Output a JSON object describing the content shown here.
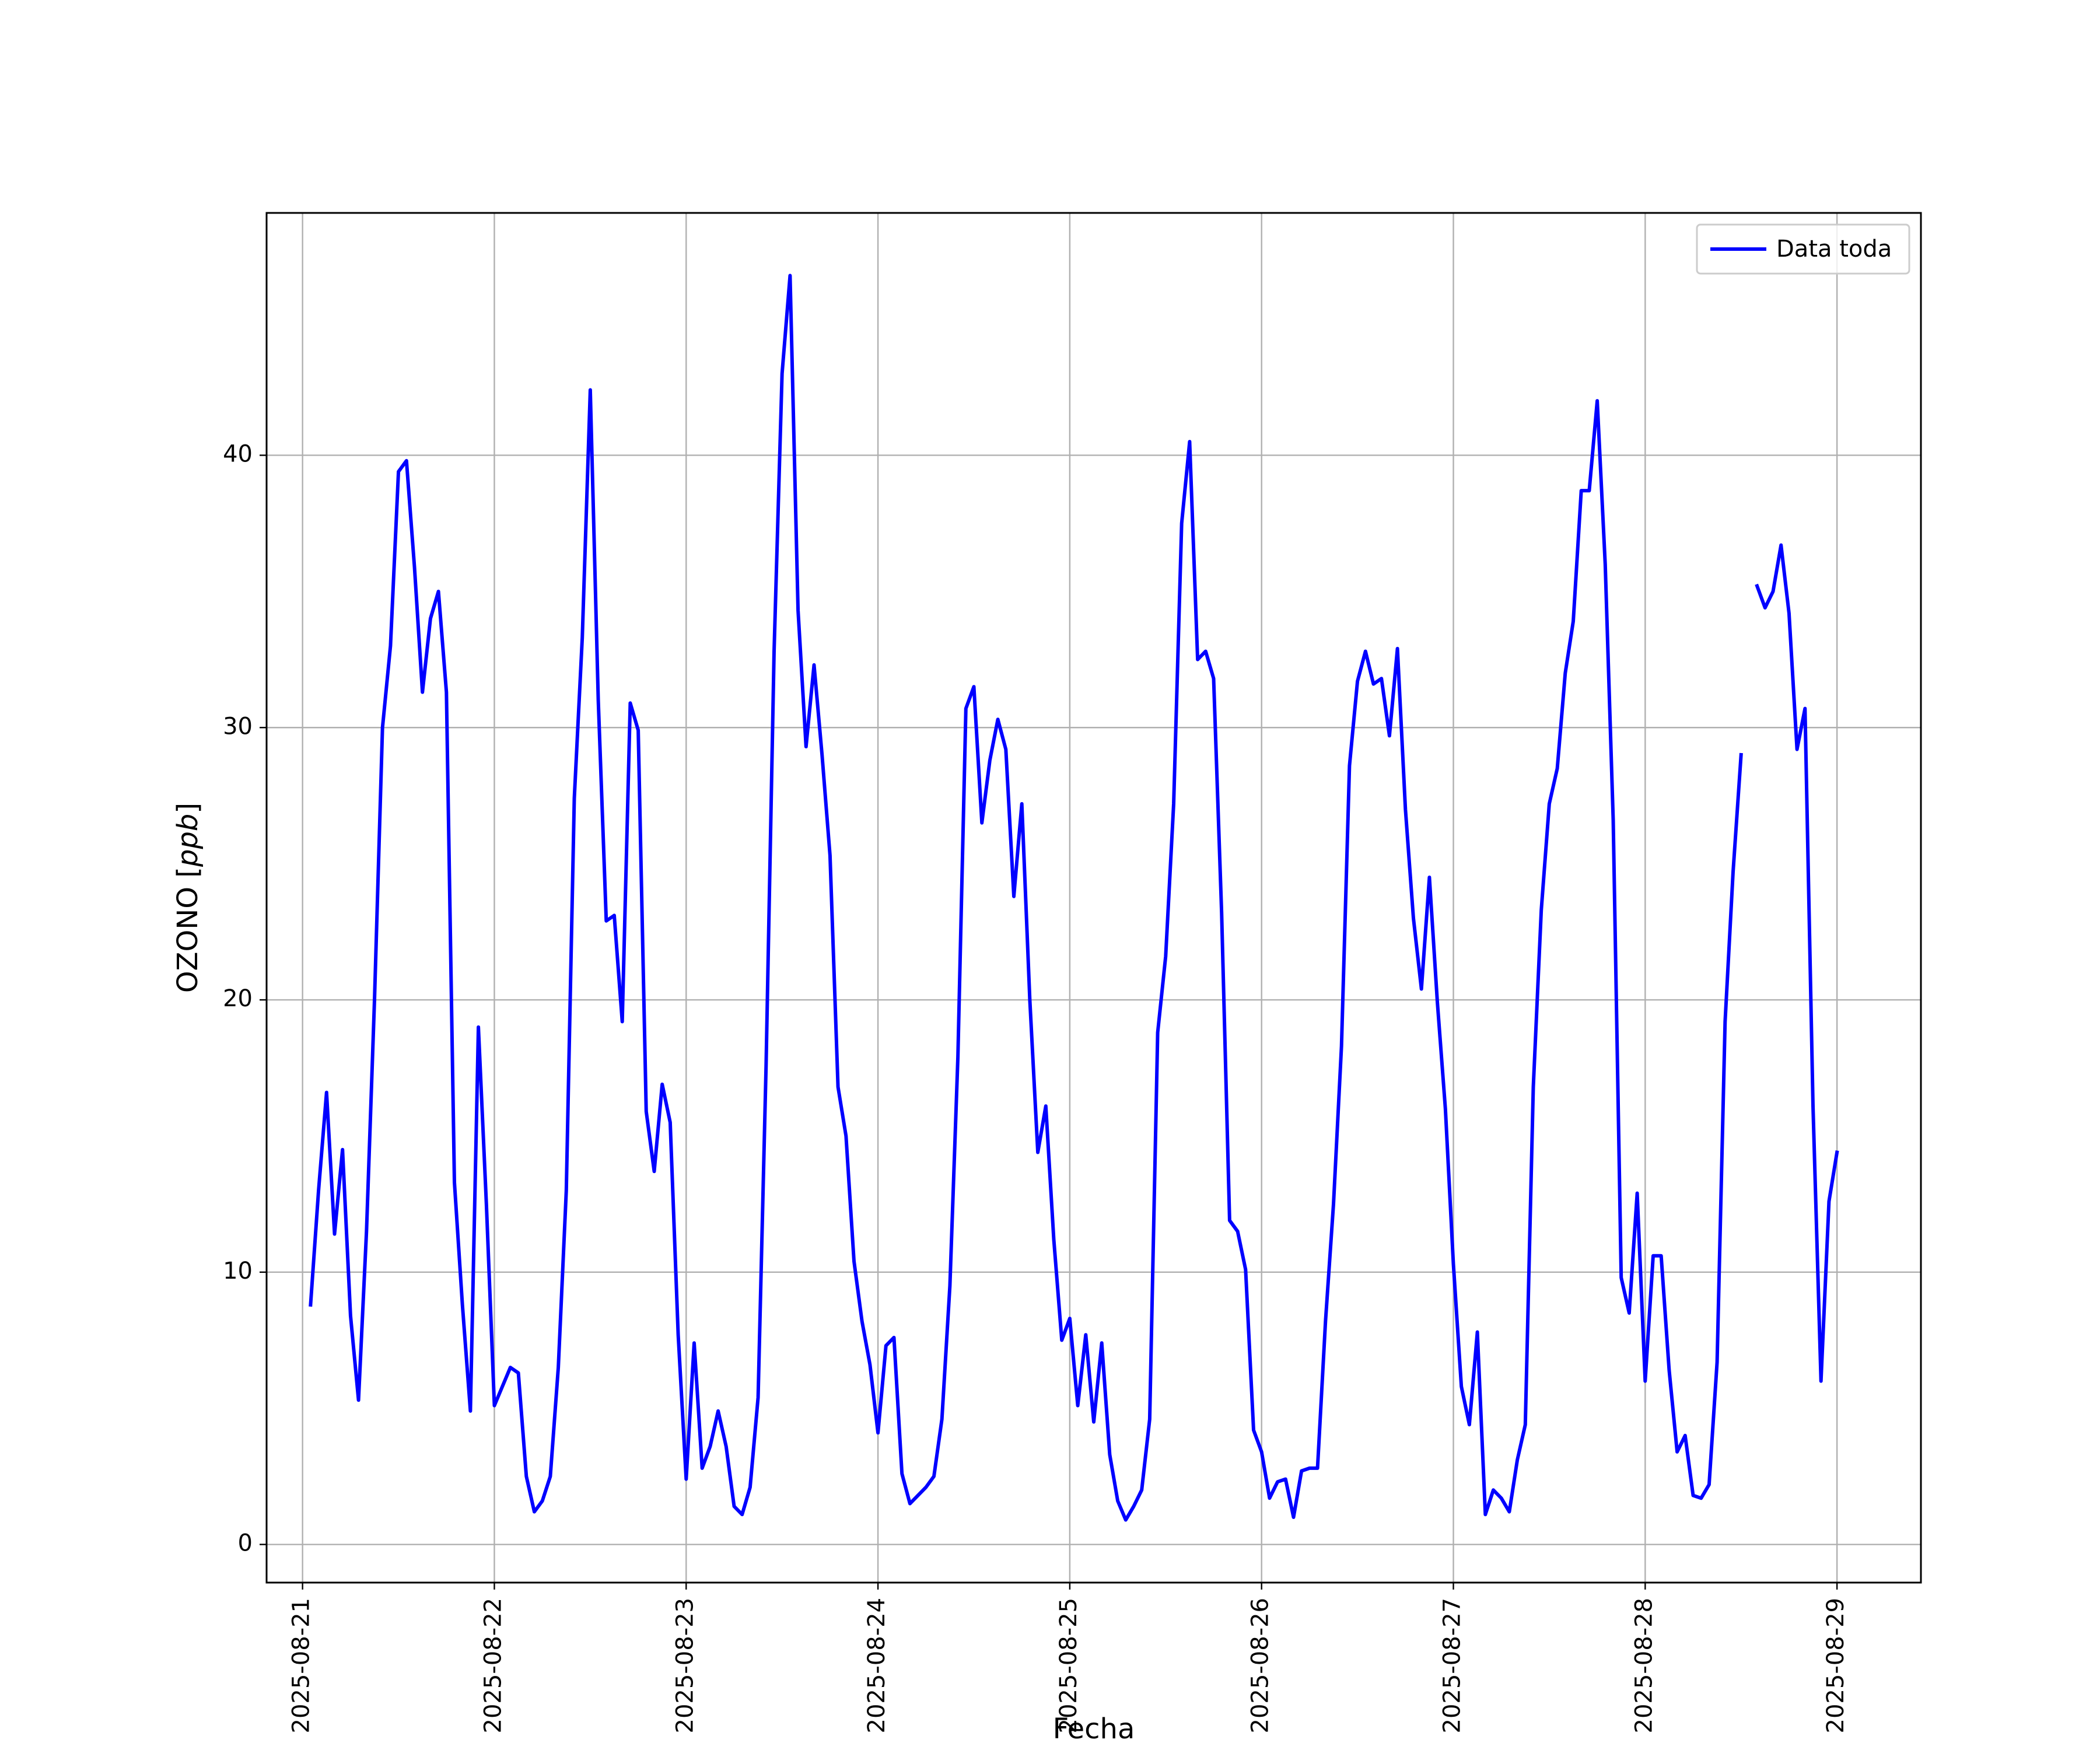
{
  "chart_data": {
    "type": "line",
    "xlabel": "Fecha",
    "ylabel": "OZONO [ppb]",
    "ylabel_main": "OZONO [",
    "ylabel_unit": "ppb",
    "ylabel_close": "]",
    "x_ticks": [
      "2025-08-21",
      "2025-08-22",
      "2025-08-23",
      "2025-08-24",
      "2025-08-25",
      "2025-08-26",
      "2025-08-27",
      "2025-08-28",
      "2025-08-29"
    ],
    "y_ticks": [
      0,
      10,
      20,
      30,
      40
    ],
    "xlim": [
      "2025-08-20T19:30",
      "2025-08-29T10:30"
    ],
    "ylim": [
      -1.4,
      48.9
    ],
    "grid": true,
    "legend_position": "top-right",
    "colors": {
      "series": "#0000ff",
      "grid": "#b0b0b0",
      "axes": "#000000",
      "legend_border": "#cccccc"
    },
    "series": [
      {
        "name": "Data toda",
        "data": [
          {
            "x": "2025-08-21 01:00",
            "y": 8.8
          },
          {
            "x": "2025-08-21 02:00",
            "y": 13.0
          },
          {
            "x": "2025-08-21 03:00",
            "y": 16.6
          },
          {
            "x": "2025-08-21 04:00",
            "y": 11.4
          },
          {
            "x": "2025-08-21 05:00",
            "y": 14.5
          },
          {
            "x": "2025-08-21 06:00",
            "y": 8.4
          },
          {
            "x": "2025-08-21 07:00",
            "y": 5.3
          },
          {
            "x": "2025-08-21 08:00",
            "y": 11.5
          },
          {
            "x": "2025-08-21 09:00",
            "y": 20.0
          },
          {
            "x": "2025-08-21 10:00",
            "y": 30.0
          },
          {
            "x": "2025-08-21 11:00",
            "y": 33.0
          },
          {
            "x": "2025-08-21 12:00",
            "y": 39.4
          },
          {
            "x": "2025-08-21 13:00",
            "y": 39.8
          },
          {
            "x": "2025-08-21 14:00",
            "y": 35.9
          },
          {
            "x": "2025-08-21 15:00",
            "y": 31.3
          },
          {
            "x": "2025-08-21 16:00",
            "y": 34.0
          },
          {
            "x": "2025-08-21 17:00",
            "y": 35.0
          },
          {
            "x": "2025-08-21 18:00",
            "y": 31.3
          },
          {
            "x": "2025-08-21 19:00",
            "y": 13.3
          },
          {
            "x": "2025-08-21 20:00",
            "y": 8.8
          },
          {
            "x": "2025-08-21 21:00",
            "y": 4.9
          },
          {
            "x": "2025-08-21 22:00",
            "y": 19.0
          },
          {
            "x": "2025-08-21 23:00",
            "y": 12.5
          },
          {
            "x": "2025-08-22 00:00",
            "y": 5.1
          },
          {
            "x": "2025-08-22 01:00",
            "y": 5.8
          },
          {
            "x": "2025-08-22 02:00",
            "y": 6.5
          },
          {
            "x": "2025-08-22 03:00",
            "y": 6.3
          },
          {
            "x": "2025-08-22 04:00",
            "y": 2.5
          },
          {
            "x": "2025-08-22 05:00",
            "y": 1.2
          },
          {
            "x": "2025-08-22 06:00",
            "y": 1.6
          },
          {
            "x": "2025-08-22 07:00",
            "y": 2.5
          },
          {
            "x": "2025-08-22 08:00",
            "y": 6.5
          },
          {
            "x": "2025-08-22 09:00",
            "y": 13.0
          },
          {
            "x": "2025-08-22 10:00",
            "y": 27.4
          },
          {
            "x": "2025-08-22 11:00",
            "y": 33.3
          },
          {
            "x": "2025-08-22 12:00",
            "y": 42.4
          },
          {
            "x": "2025-08-22 13:00",
            "y": 31.0
          },
          {
            "x": "2025-08-22 14:00",
            "y": 22.9
          },
          {
            "x": "2025-08-22 15:00",
            "y": 23.1
          },
          {
            "x": "2025-08-22 16:00",
            "y": 19.2
          },
          {
            "x": "2025-08-22 17:00",
            "y": 30.9
          },
          {
            "x": "2025-08-22 18:00",
            "y": 29.9
          },
          {
            "x": "2025-08-22 19:00",
            "y": 15.9
          },
          {
            "x": "2025-08-22 20:00",
            "y": 13.7
          },
          {
            "x": "2025-08-22 21:00",
            "y": 16.9
          },
          {
            "x": "2025-08-22 22:00",
            "y": 15.5
          },
          {
            "x": "2025-08-22 23:00",
            "y": 7.7
          },
          {
            "x": "2025-08-23 00:00",
            "y": 2.4
          },
          {
            "x": "2025-08-23 01:00",
            "y": 7.4
          },
          {
            "x": "2025-08-23 02:00",
            "y": 2.8
          },
          {
            "x": "2025-08-23 03:00",
            "y": 3.6
          },
          {
            "x": "2025-08-23 04:00",
            "y": 4.9
          },
          {
            "x": "2025-08-23 05:00",
            "y": 3.6
          },
          {
            "x": "2025-08-23 06:00",
            "y": 1.4
          },
          {
            "x": "2025-08-23 07:00",
            "y": 1.1
          },
          {
            "x": "2025-08-23 08:00",
            "y": 2.1
          },
          {
            "x": "2025-08-23 09:00",
            "y": 5.4
          },
          {
            "x": "2025-08-23 10:00",
            "y": 17.6
          },
          {
            "x": "2025-08-23 11:00",
            "y": 32.8
          },
          {
            "x": "2025-08-23 12:00",
            "y": 43.0
          },
          {
            "x": "2025-08-23 13:00",
            "y": 46.6
          },
          {
            "x": "2025-08-23 14:00",
            "y": 34.3
          },
          {
            "x": "2025-08-23 15:00",
            "y": 29.3
          },
          {
            "x": "2025-08-23 16:00",
            "y": 32.3
          },
          {
            "x": "2025-08-23 17:00",
            "y": 29.0
          },
          {
            "x": "2025-08-23 18:00",
            "y": 25.3
          },
          {
            "x": "2025-08-23 19:00",
            "y": 16.8
          },
          {
            "x": "2025-08-23 20:00",
            "y": 15.0
          },
          {
            "x": "2025-08-23 21:00",
            "y": 10.4
          },
          {
            "x": "2025-08-23 22:00",
            "y": 8.2
          },
          {
            "x": "2025-08-23 23:00",
            "y": 6.6
          },
          {
            "x": "2025-08-24 00:00",
            "y": 4.1
          },
          {
            "x": "2025-08-24 01:00",
            "y": 7.3
          },
          {
            "x": "2025-08-24 02:00",
            "y": 7.6
          },
          {
            "x": "2025-08-24 03:00",
            "y": 2.6
          },
          {
            "x": "2025-08-24 04:00",
            "y": 1.5
          },
          {
            "x": "2025-08-24 05:00",
            "y": 1.8
          },
          {
            "x": "2025-08-24 06:00",
            "y": 2.1
          },
          {
            "x": "2025-08-24 07:00",
            "y": 2.5
          },
          {
            "x": "2025-08-24 08:00",
            "y": 4.6
          },
          {
            "x": "2025-08-24 09:00",
            "y": 9.5
          },
          {
            "x": "2025-08-24 10:00",
            "y": 17.9
          },
          {
            "x": "2025-08-24 11:00",
            "y": 30.7
          },
          {
            "x": "2025-08-24 12:00",
            "y": 31.5
          },
          {
            "x": "2025-08-24 13:00",
            "y": 26.5
          },
          {
            "x": "2025-08-24 14:00",
            "y": 28.8
          },
          {
            "x": "2025-08-24 15:00",
            "y": 30.3
          },
          {
            "x": "2025-08-24 16:00",
            "y": 29.2
          },
          {
            "x": "2025-08-24 17:00",
            "y": 23.8
          },
          {
            "x": "2025-08-24 18:00",
            "y": 27.2
          },
          {
            "x": "2025-08-24 19:00",
            "y": 20.0
          },
          {
            "x": "2025-08-24 20:00",
            "y": 14.4
          },
          {
            "x": "2025-08-24 21:00",
            "y": 16.1
          },
          {
            "x": "2025-08-24 22:00",
            "y": 11.2
          },
          {
            "x": "2025-08-24 23:00",
            "y": 7.5
          },
          {
            "x": "2025-08-25 00:00",
            "y": 8.3
          },
          {
            "x": "2025-08-25 01:00",
            "y": 5.1
          },
          {
            "x": "2025-08-25 02:00",
            "y": 7.7
          },
          {
            "x": "2025-08-25 03:00",
            "y": 4.5
          },
          {
            "x": "2025-08-25 04:00",
            "y": 7.4
          },
          {
            "x": "2025-08-25 05:00",
            "y": 3.3
          },
          {
            "x": "2025-08-25 06:00",
            "y": 1.6
          },
          {
            "x": "2025-08-25 07:00",
            "y": 0.9
          },
          {
            "x": "2025-08-25 08:00",
            "y": 1.4
          },
          {
            "x": "2025-08-25 09:00",
            "y": 2.0
          },
          {
            "x": "2025-08-25 10:00",
            "y": 4.6
          },
          {
            "x": "2025-08-25 11:00",
            "y": 18.8
          },
          {
            "x": "2025-08-25 12:00",
            "y": 21.6
          },
          {
            "x": "2025-08-25 13:00",
            "y": 27.2
          },
          {
            "x": "2025-08-25 14:00",
            "y": 37.5
          },
          {
            "x": "2025-08-25 15:00",
            "y": 40.5
          },
          {
            "x": "2025-08-25 16:00",
            "y": 32.5
          },
          {
            "x": "2025-08-25 17:00",
            "y": 32.8
          },
          {
            "x": "2025-08-25 18:00",
            "y": 31.8
          },
          {
            "x": "2025-08-25 19:00",
            "y": 23.2
          },
          {
            "x": "2025-08-25 20:00",
            "y": 11.9
          },
          {
            "x": "2025-08-25 21:00",
            "y": 11.5
          },
          {
            "x": "2025-08-25 22:00",
            "y": 10.1
          },
          {
            "x": "2025-08-25 23:00",
            "y": 4.2
          },
          {
            "x": "2025-08-26 00:00",
            "y": 3.4
          },
          {
            "x": "2025-08-26 01:00",
            "y": 1.7
          },
          {
            "x": "2025-08-26 02:00",
            "y": 2.3
          },
          {
            "x": "2025-08-26 03:00",
            "y": 2.4
          },
          {
            "x": "2025-08-26 04:00",
            "y": 1.0
          },
          {
            "x": "2025-08-26 05:00",
            "y": 2.7
          },
          {
            "x": "2025-08-26 06:00",
            "y": 2.8
          },
          {
            "x": "2025-08-26 07:00",
            "y": 2.8
          },
          {
            "x": "2025-08-26 08:00",
            "y": 8.2
          },
          {
            "x": "2025-08-26 09:00",
            "y": 12.5
          },
          {
            "x": "2025-08-26 10:00",
            "y": 18.3
          },
          {
            "x": "2025-08-26 11:00",
            "y": 28.6
          },
          {
            "x": "2025-08-26 12:00",
            "y": 31.7
          },
          {
            "x": "2025-08-26 13:00",
            "y": 32.8
          },
          {
            "x": "2025-08-26 14:00",
            "y": 31.6
          },
          {
            "x": "2025-08-26 15:00",
            "y": 31.8
          },
          {
            "x": "2025-08-26 16:00",
            "y": 29.7
          },
          {
            "x": "2025-08-26 17:00",
            "y": 32.9
          },
          {
            "x": "2025-08-26 18:00",
            "y": 27.0
          },
          {
            "x": "2025-08-26 19:00",
            "y": 23.0
          },
          {
            "x": "2025-08-26 20:00",
            "y": 20.4
          },
          {
            "x": "2025-08-26 21:00",
            "y": 24.5
          },
          {
            "x": "2025-08-26 22:00",
            "y": 19.9
          },
          {
            "x": "2025-08-26 23:00",
            "y": 16.0
          },
          {
            "x": "2025-08-27 00:00",
            "y": 10.3
          },
          {
            "x": "2025-08-27 01:00",
            "y": 5.8
          },
          {
            "x": "2025-08-27 02:00",
            "y": 4.4
          },
          {
            "x": "2025-08-27 03:00",
            "y": 7.8
          },
          {
            "x": "2025-08-27 04:00",
            "y": 1.1
          },
          {
            "x": "2025-08-27 05:00",
            "y": 2.0
          },
          {
            "x": "2025-08-27 06:00",
            "y": 1.7
          },
          {
            "x": "2025-08-27 07:00",
            "y": 1.2
          },
          {
            "x": "2025-08-27 08:00",
            "y": 3.1
          },
          {
            "x": "2025-08-27 09:00",
            "y": 4.4
          },
          {
            "x": "2025-08-27 10:00",
            "y": 16.8
          },
          {
            "x": "2025-08-27 11:00",
            "y": 23.3
          },
          {
            "x": "2025-08-27 12:00",
            "y": 27.2
          },
          {
            "x": "2025-08-27 13:00",
            "y": 28.5
          },
          {
            "x": "2025-08-27 14:00",
            "y": 32.0
          },
          {
            "x": "2025-08-27 15:00",
            "y": 33.9
          },
          {
            "x": "2025-08-27 16:00",
            "y": 38.7
          },
          {
            "x": "2025-08-27 17:00",
            "y": 38.7
          },
          {
            "x": "2025-08-27 18:00",
            "y": 42.0
          },
          {
            "x": "2025-08-27 19:00",
            "y": 36.0
          },
          {
            "x": "2025-08-27 20:00",
            "y": 26.6
          },
          {
            "x": "2025-08-27 21:00",
            "y": 9.8
          },
          {
            "x": "2025-08-27 22:00",
            "y": 8.5
          },
          {
            "x": "2025-08-27 23:00",
            "y": 12.9
          },
          {
            "x": "2025-08-28 00:00",
            "y": 6.0
          },
          {
            "x": "2025-08-28 01:00",
            "y": 10.6
          },
          {
            "x": "2025-08-28 02:00",
            "y": 10.6
          },
          {
            "x": "2025-08-28 03:00",
            "y": 6.4
          },
          {
            "x": "2025-08-28 04:00",
            "y": 3.4
          },
          {
            "x": "2025-08-28 05:00",
            "y": 4.0
          },
          {
            "x": "2025-08-28 06:00",
            "y": 1.8
          },
          {
            "x": "2025-08-28 07:00",
            "y": 1.7
          },
          {
            "x": "2025-08-28 08:00",
            "y": 2.2
          },
          {
            "x": "2025-08-28 09:00",
            "y": 6.7
          },
          {
            "x": "2025-08-28 10:00",
            "y": 19.2
          },
          {
            "x": "2025-08-28 11:00",
            "y": 24.7
          },
          {
            "x": "2025-08-28 12:00",
            "y": 29.0
          },
          {
            "x": "2025-08-28 13:00",
            "y": null
          },
          {
            "x": "2025-08-28 14:00",
            "y": 35.2
          },
          {
            "x": "2025-08-28 15:00",
            "y": 34.4
          },
          {
            "x": "2025-08-28 16:00",
            "y": 35.0
          },
          {
            "x": "2025-08-28 17:00",
            "y": 36.7
          },
          {
            "x": "2025-08-28 18:00",
            "y": 34.2
          },
          {
            "x": "2025-08-28 19:00",
            "y": 29.2
          },
          {
            "x": "2025-08-28 20:00",
            "y": 30.7
          },
          {
            "x": "2025-08-28 21:00",
            "y": 16.1
          },
          {
            "x": "2025-08-28 22:00",
            "y": 6.0
          },
          {
            "x": "2025-08-28 23:00",
            "y": 12.6
          },
          {
            "x": "2025-08-29 00:00",
            "y": 14.4
          }
        ]
      }
    ]
  }
}
